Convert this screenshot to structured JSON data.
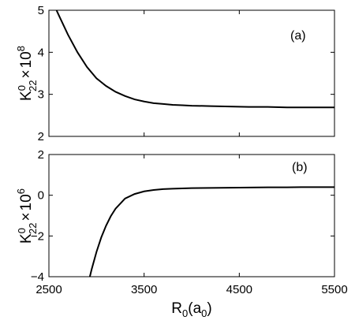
{
  "chart_data": [
    {
      "type": "line",
      "panel_label": "(a)",
      "ylabel": {
        "base": "K",
        "sup": "0",
        "sub": "22",
        "times": "×",
        "ten": "10",
        "exp": "8"
      },
      "xlim": [
        2500,
        5500
      ],
      "ylim": [
        2,
        5
      ],
      "xticks": [
        2500,
        3500,
        4500,
        5500
      ],
      "yticks": [
        2,
        3,
        4,
        5
      ],
      "xtick_labels_shown": false,
      "grid": false,
      "series": [
        {
          "color": "#000000",
          "x": [
            2560,
            2600,
            2700,
            2800,
            2900,
            3000,
            3100,
            3200,
            3300,
            3400,
            3500,
            3600,
            3700,
            3800,
            3900,
            4000,
            4200,
            4400,
            4600,
            4800,
            5000,
            5200,
            5400,
            5500
          ],
          "y": [
            5.1,
            4.9,
            4.42,
            4.0,
            3.65,
            3.38,
            3.2,
            3.06,
            2.96,
            2.88,
            2.83,
            2.79,
            2.77,
            2.75,
            2.74,
            2.73,
            2.72,
            2.71,
            2.7,
            2.7,
            2.69,
            2.69,
            2.69,
            2.69
          ]
        }
      ]
    },
    {
      "type": "line",
      "panel_label": "(b)",
      "ylabel": {
        "base": "K",
        "sup": "0",
        "sub": "22",
        "times": "×",
        "ten": "10",
        "exp": "6"
      },
      "xlabel": {
        "base": "R",
        "sub": "0",
        "unit_open": "(a",
        "unit_sub": "0",
        "unit_close": ")"
      },
      "xlim": [
        2500,
        5500
      ],
      "ylim": [
        -4,
        2
      ],
      "xticks": [
        2500,
        3500,
        4500,
        5500
      ],
      "yticks": [
        -4,
        -2,
        0,
        2
      ],
      "xtick_labels_shown": true,
      "grid": false,
      "series": [
        {
          "color": "#000000",
          "x": [
            2930,
            2950,
            3000,
            3050,
            3100,
            3150,
            3200,
            3300,
            3400,
            3500,
            3600,
            3700,
            3800,
            4000,
            4200,
            4400,
            4600,
            4800,
            5000,
            5200,
            5500
          ],
          "y": [
            -4.0,
            -3.62,
            -2.78,
            -2.07,
            -1.5,
            -1.03,
            -0.66,
            -0.16,
            0.06,
            0.19,
            0.26,
            0.3,
            0.32,
            0.35,
            0.36,
            0.37,
            0.38,
            0.39,
            0.39,
            0.4,
            0.4
          ]
        }
      ]
    }
  ]
}
